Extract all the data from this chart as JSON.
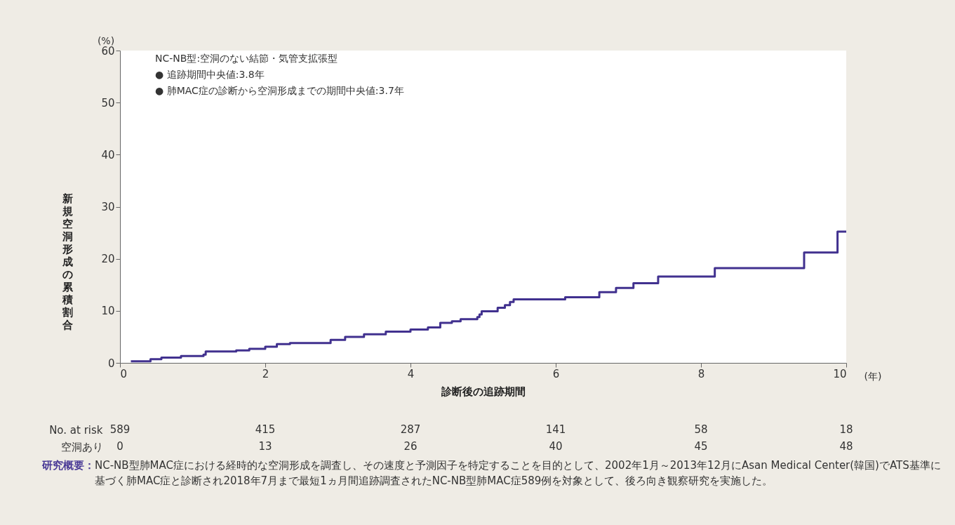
{
  "chart_data": {
    "type": "step",
    "xlabel": "診断後の追跡期間",
    "ylabel": "新規空洞形成の累積割合",
    "x": [
      0.15,
      0.42,
      0.57,
      0.84,
      1.15,
      1.18,
      1.6,
      1.78,
      2.0,
      2.16,
      2.34,
      2.9,
      3.1,
      3.36,
      3.66,
      4.0,
      4.24,
      4.41,
      4.57,
      4.69,
      4.92,
      4.95,
      4.98,
      5.2,
      5.3,
      5.37,
      5.42,
      6.13,
      6.6,
      6.83,
      7.07,
      7.41,
      8.19,
      9.42,
      9.88,
      10.0
    ],
    "series": [
      {
        "color": "#41318f",
        "values": [
          0.3,
          0.7,
          1.0,
          1.3,
          1.6,
          2.2,
          2.4,
          2.7,
          3.1,
          3.6,
          3.8,
          4.4,
          5.0,
          5.5,
          6.0,
          6.4,
          6.8,
          7.7,
          8.0,
          8.4,
          8.8,
          9.3,
          9.9,
          10.6,
          11.1,
          11.7,
          12.2,
          12.6,
          13.6,
          14.4,
          15.3,
          16.6,
          18.2,
          21.2,
          25.2,
          25.2
        ]
      }
    ],
    "xlim": [
      0,
      10
    ],
    "xticks": [
      0,
      2,
      4,
      6,
      8,
      10
    ],
    "ylim": [
      0,
      60
    ],
    "yticks": [
      0,
      10,
      20,
      30,
      40,
      50,
      60
    ],
    "grid": false,
    "annotations": [
      "(%)",
      "(年)",
      "NC-NB型:空洞のない結節・気管支拡張型",
      "● 追跡期間中央値:3.8年",
      "● 肺MAC症の診断から空洞形成までの期間中央値:3.7年",
      "No. at risk",
      "589",
      "415",
      "287",
      "141",
      "58",
      "18",
      "空洞あり",
      "0",
      "13",
      "26",
      "40",
      "45",
      "48",
      "研究概要：",
      "NC-NB型肺MAC症における経時的な空洞形成を調査し、その速度と予測因子を特定することを目的として、2002年1月～2013年12月にAsan Medical Center(韓国)でATS基準に基づく肺MAC症と診断され2018年7月まで最短1ヵ月間追跡調査されたNC-NB型肺MAC症589例を対象として、後ろ向き観察研究を実施した。"
    ]
  }
}
